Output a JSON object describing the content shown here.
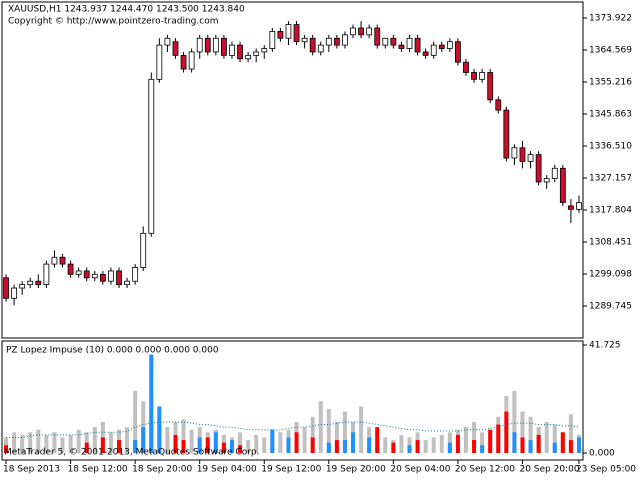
{
  "chart_data": [
    {
      "type": "candlestick",
      "title": "XAUUSD,H1  1243.937 1244.470 1243.500 1243.840",
      "subtitle": "Copyright © http://www.pointzero-trading.com",
      "categories": [
        "18 Sep 2013",
        null,
        null,
        null,
        null,
        null,
        null,
        null,
        "18 Sep 12:00",
        null,
        null,
        null,
        null,
        null,
        null,
        null,
        "18 Sep 20:00",
        null,
        null,
        null,
        null,
        null,
        null,
        null,
        "19 Sep 04:00",
        null,
        null,
        null,
        null,
        null,
        null,
        null,
        "19 Sep 12:00",
        null,
        null,
        null,
        null,
        null,
        null,
        null,
        "19 Sep 20:00",
        null,
        null,
        null,
        null,
        null,
        null,
        null,
        "20 Sep 04:00",
        null,
        null,
        null,
        null,
        null,
        null,
        null,
        "20 Sep 12:00",
        null,
        null,
        null,
        null,
        null,
        null,
        null,
        "20 Sep 20:00",
        null,
        null,
        null,
        null,
        null,
        null,
        "23 Sep 05:00"
      ],
      "open": [
        1298,
        1292,
        1295,
        1296,
        1297,
        1296,
        1302,
        1304,
        1302,
        1299,
        1300,
        1298,
        1299,
        1297,
        1300,
        1296,
        1297,
        1301,
        1311,
        1356,
        1366,
        1367,
        1363,
        1359,
        1364,
        1368,
        1364,
        1368,
        1363,
        1366,
        1362,
        1363,
        1364,
        1365,
        1370,
        1368,
        1372,
        1367,
        1368,
        1364,
        1366,
        1368,
        1366,
        1369,
        1371,
        1369,
        1371,
        1366,
        1368,
        1366,
        1365,
        1368,
        1364,
        1363,
        1366,
        1365,
        1367,
        1361,
        1358,
        1356,
        1358,
        1350,
        1347,
        1333,
        1336,
        1332,
        1334,
        1326,
        1327,
        1330,
        1319,
        1318
      ],
      "high": [
        1299,
        1296,
        1297,
        1298,
        1299,
        1303,
        1306,
        1305,
        1303,
        1301,
        1301,
        1300,
        1300,
        1301,
        1301,
        1298,
        1302,
        1313,
        1358,
        1368,
        1369,
        1368,
        1364,
        1365,
        1369,
        1369,
        1369,
        1369,
        1367,
        1367,
        1364,
        1365,
        1366,
        1371,
        1371,
        1373,
        1373,
        1369,
        1369,
        1367,
        1369,
        1369,
        1370,
        1372,
        1373,
        1372,
        1372,
        1368,
        1369,
        1367,
        1369,
        1369,
        1365,
        1367,
        1367,
        1368,
        1368,
        1362,
        1359,
        1359,
        1359,
        1351,
        1348,
        1337,
        1338,
        1335,
        1335,
        1328,
        1331,
        1331,
        1321,
        1322
      ],
      "low": [
        1291,
        1290,
        1293,
        1295,
        1295,
        1295,
        1301,
        1301,
        1298,
        1298,
        1297,
        1297,
        1296,
        1296,
        1295,
        1295,
        1296,
        1300,
        1310,
        1355,
        1364,
        1362,
        1358,
        1358,
        1362,
        1363,
        1363,
        1362,
        1362,
        1361,
        1361,
        1361,
        1362,
        1364,
        1367,
        1366,
        1366,
        1365,
        1363,
        1363,
        1364,
        1365,
        1365,
        1368,
        1368,
        1368,
        1365,
        1365,
        1365,
        1364,
        1364,
        1363,
        1362,
        1362,
        1364,
        1364,
        1360,
        1357,
        1355,
        1355,
        1349,
        1346,
        1332,
        1331,
        1330,
        1330,
        1325,
        1324,
        1326,
        1319,
        1314,
        1317
      ],
      "close": [
        1292,
        1295,
        1296,
        1297,
        1296,
        1302,
        1304,
        1302,
        1299,
        1300,
        1298,
        1299,
        1297,
        1300,
        1296,
        1297,
        1301,
        1311,
        1356,
        1366,
        1368,
        1363,
        1359,
        1364,
        1368,
        1364,
        1368,
        1363,
        1366,
        1362,
        1363,
        1364,
        1365,
        1370,
        1368,
        1372,
        1367,
        1368,
        1364,
        1366,
        1368,
        1366,
        1369,
        1371,
        1369,
        1371,
        1366,
        1368,
        1366,
        1365,
        1368,
        1364,
        1363,
        1366,
        1365,
        1367,
        1361,
        1358,
        1356,
        1358,
        1350,
        1347,
        1333,
        1336,
        1332,
        1334,
        1326,
        1327,
        1330,
        1320,
        1318,
        1320
      ],
      "up_color": "#ffffff",
      "down_color": "#c8102e",
      "ylim": [
        1280.4,
        1378.6
      ],
      "yticks": [
        1373.922,
        1364.569,
        1355.216,
        1345.863,
        {
          "value": 1336.51,
          "label": "1336.510"
        },
        1327.157,
        1317.804,
        1308.451,
        1299.098,
        1289.745
      ]
    },
    {
      "type": "bar",
      "title": "PZ Lopez Impuse (10) 0.000 0.000 0.000 0.000",
      "footer": "MetaTrader 5, © 2001-2013, MetaQuotes Software Corp.",
      "ylim": [
        -2.7,
        43.27
      ],
      "yticks": [
        41.725,
        {
          "value": 0,
          "label": "0.000"
        }
      ],
      "series": [
        {
          "kind": "bar",
          "color": "#c0c0c0",
          "values": [
            6,
            8,
            7,
            8,
            9,
            7,
            8,
            6,
            7,
            9,
            8,
            10,
            12,
            8,
            9,
            10,
            24,
            20,
            14,
            12,
            10,
            12,
            13,
            9,
            10,
            8,
            9,
            7,
            6,
            8,
            5,
            7,
            6,
            8,
            8,
            9,
            12,
            10,
            14,
            20,
            17,
            12,
            16,
            12,
            18,
            10,
            8,
            6,
            5,
            7,
            6,
            8,
            5,
            6,
            7,
            8,
            9,
            10,
            12,
            8,
            9,
            14,
            22,
            24,
            16,
            14,
            10,
            12,
            11,
            8,
            15,
            7
          ]
        },
        {
          "kind": "bar",
          "color": "#1e90ff",
          "values": [
            null,
            null,
            null,
            null,
            null,
            null,
            null,
            null,
            null,
            null,
            null,
            null,
            null,
            null,
            null,
            null,
            5,
            10,
            38,
            18,
            null,
            null,
            null,
            null,
            6,
            null,
            8,
            null,
            5,
            null,
            null,
            null,
            null,
            9,
            null,
            6,
            null,
            null,
            null,
            null,
            4,
            null,
            5,
            8,
            null,
            6,
            null,
            null,
            null,
            null,
            3,
            null,
            null,
            null,
            null,
            4,
            null,
            null,
            null,
            3,
            null,
            null,
            null,
            8,
            null,
            5,
            null,
            null,
            4,
            null,
            null,
            6
          ]
        },
        {
          "kind": "bar",
          "color": "#ff0000",
          "values": [
            3,
            null,
            null,
            null,
            null,
            null,
            null,
            null,
            null,
            null,
            4,
            null,
            6,
            null,
            5,
            null,
            null,
            null,
            null,
            null,
            null,
            7,
            5,
            null,
            null,
            6,
            null,
            4,
            null,
            3,
            null,
            null,
            null,
            null,
            null,
            null,
            8,
            null,
            6,
            null,
            null,
            5,
            null,
            null,
            null,
            null,
            10,
            null,
            4,
            null,
            null,
            5,
            null,
            null,
            null,
            null,
            7,
            null,
            5,
            null,
            9,
            11,
            16,
            null,
            6,
            null,
            7,
            null,
            null,
            8,
            5,
            null
          ]
        },
        {
          "kind": "line",
          "color": "#008080",
          "values": [
            6,
            6,
            6,
            6.5,
            7,
            7,
            7,
            7,
            7,
            7,
            7.5,
            8,
            8,
            8,
            8,
            8.5,
            10,
            11,
            11.5,
            12,
            12,
            12,
            12,
            11.5,
            11,
            11,
            10.5,
            10,
            10,
            9.5,
            9,
            9,
            9,
            9,
            9,
            9.5,
            10,
            10,
            10.5,
            11,
            11,
            11.5,
            12,
            12,
            12,
            11.5,
            11,
            10.5,
            10,
            9.5,
            9,
            9,
            8.5,
            8.5,
            8.5,
            8.5,
            8.5,
            9,
            9,
            9,
            9.5,
            10,
            11,
            11.5,
            11.5,
            11.5,
            11,
            11,
            11,
            10.5,
            10.5,
            10
          ]
        }
      ]
    }
  ]
}
